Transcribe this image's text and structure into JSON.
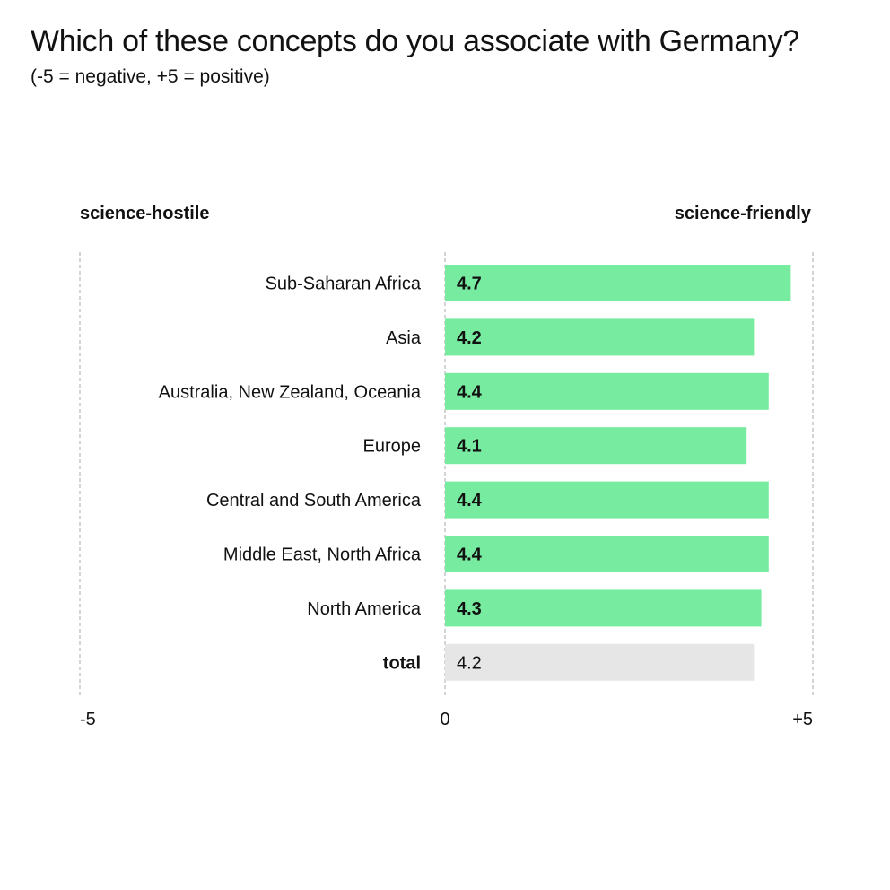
{
  "title": "Which of these concepts do you associate with Germany?",
  "subtitle": "(-5 = negative, +5 = positive)",
  "chart_data": {
    "type": "bar",
    "orientation": "horizontal",
    "title": "Which of these concepts do you associate with Germany?",
    "subtitle": "(-5 = negative, +5 = positive)",
    "left_label": "science-hostile",
    "right_label": "science-friendly",
    "xlim": [
      -5,
      5
    ],
    "x_ticks": [
      {
        "value": -5,
        "label": "-5"
      },
      {
        "value": 0,
        "label": "0"
      },
      {
        "value": 5,
        "label": "+5"
      }
    ],
    "categories": [
      "Sub-Saharan Africa",
      "Asia",
      "Australia, New Zealand, Oceania",
      "Europe",
      "Central and South America",
      "Middle East, North Africa",
      "North America",
      "total"
    ],
    "values": [
      4.7,
      4.2,
      4.4,
      4.1,
      4.4,
      4.4,
      4.3,
      4.2
    ],
    "value_labels": [
      "4.7",
      "4.2",
      "4.4",
      "4.1",
      "4.4",
      "4.4",
      "4.3",
      "4.2"
    ],
    "highlight": [
      false,
      false,
      false,
      false,
      false,
      false,
      false,
      true
    ],
    "colors": {
      "bar": "#77eb9f",
      "total_bar": "#e6e6e6",
      "text": "#111111",
      "grid": "#aaaaaa"
    },
    "grid": true,
    "legend": "none"
  }
}
